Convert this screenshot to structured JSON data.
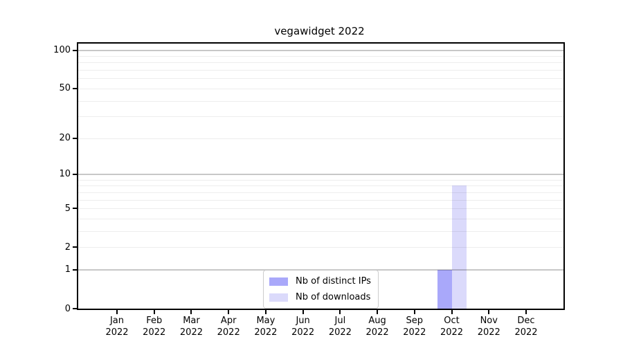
{
  "figure": {
    "background": "#ffffff"
  },
  "chart_data": {
    "type": "bar",
    "title": "vegawidget 2022",
    "categories": [
      "Jan",
      "Feb",
      "Mar",
      "Apr",
      "May",
      "Jun",
      "Jul",
      "Aug",
      "Sep",
      "Oct",
      "Nov",
      "Dec"
    ],
    "category_year": "2022",
    "series": [
      {
        "name": "Nb of distinct IPs",
        "color": "#a9a8fa",
        "values": [
          0,
          0,
          0,
          0,
          0,
          0,
          0,
          0,
          0,
          1,
          0,
          0
        ]
      },
      {
        "name": "Nb of downloads",
        "color": "#dbdafb",
        "values": [
          0,
          0,
          0,
          0,
          0,
          0,
          0,
          0,
          0,
          8,
          0,
          0
        ]
      }
    ],
    "y_axis": {
      "scale": "log10(1+value)",
      "ticks": [
        0,
        1,
        2,
        5,
        10,
        20,
        50,
        100
      ],
      "range_max": 100,
      "major_gridlines": [
        1,
        10,
        100
      ],
      "minor_gridlines": [
        2,
        3,
        4,
        5,
        6,
        7,
        8,
        9,
        20,
        30,
        40,
        50,
        60,
        70,
        80,
        90
      ]
    },
    "x_axis": {
      "tick_count": 12
    },
    "legend": {
      "position": "lower center",
      "entries": [
        "Nb of distinct IPs",
        "Nb of downloads"
      ]
    },
    "grid": true
  },
  "colors": {
    "bar_distinct_ips": "#a9a8fa",
    "bar_downloads": "#dbdafb",
    "major_grid": "rgba(0,0,0,0.22)",
    "minor_grid": "rgba(0,0,0,0.07)",
    "axis": "#000000",
    "legend_border": "#cccccc",
    "text": "#000000"
  }
}
